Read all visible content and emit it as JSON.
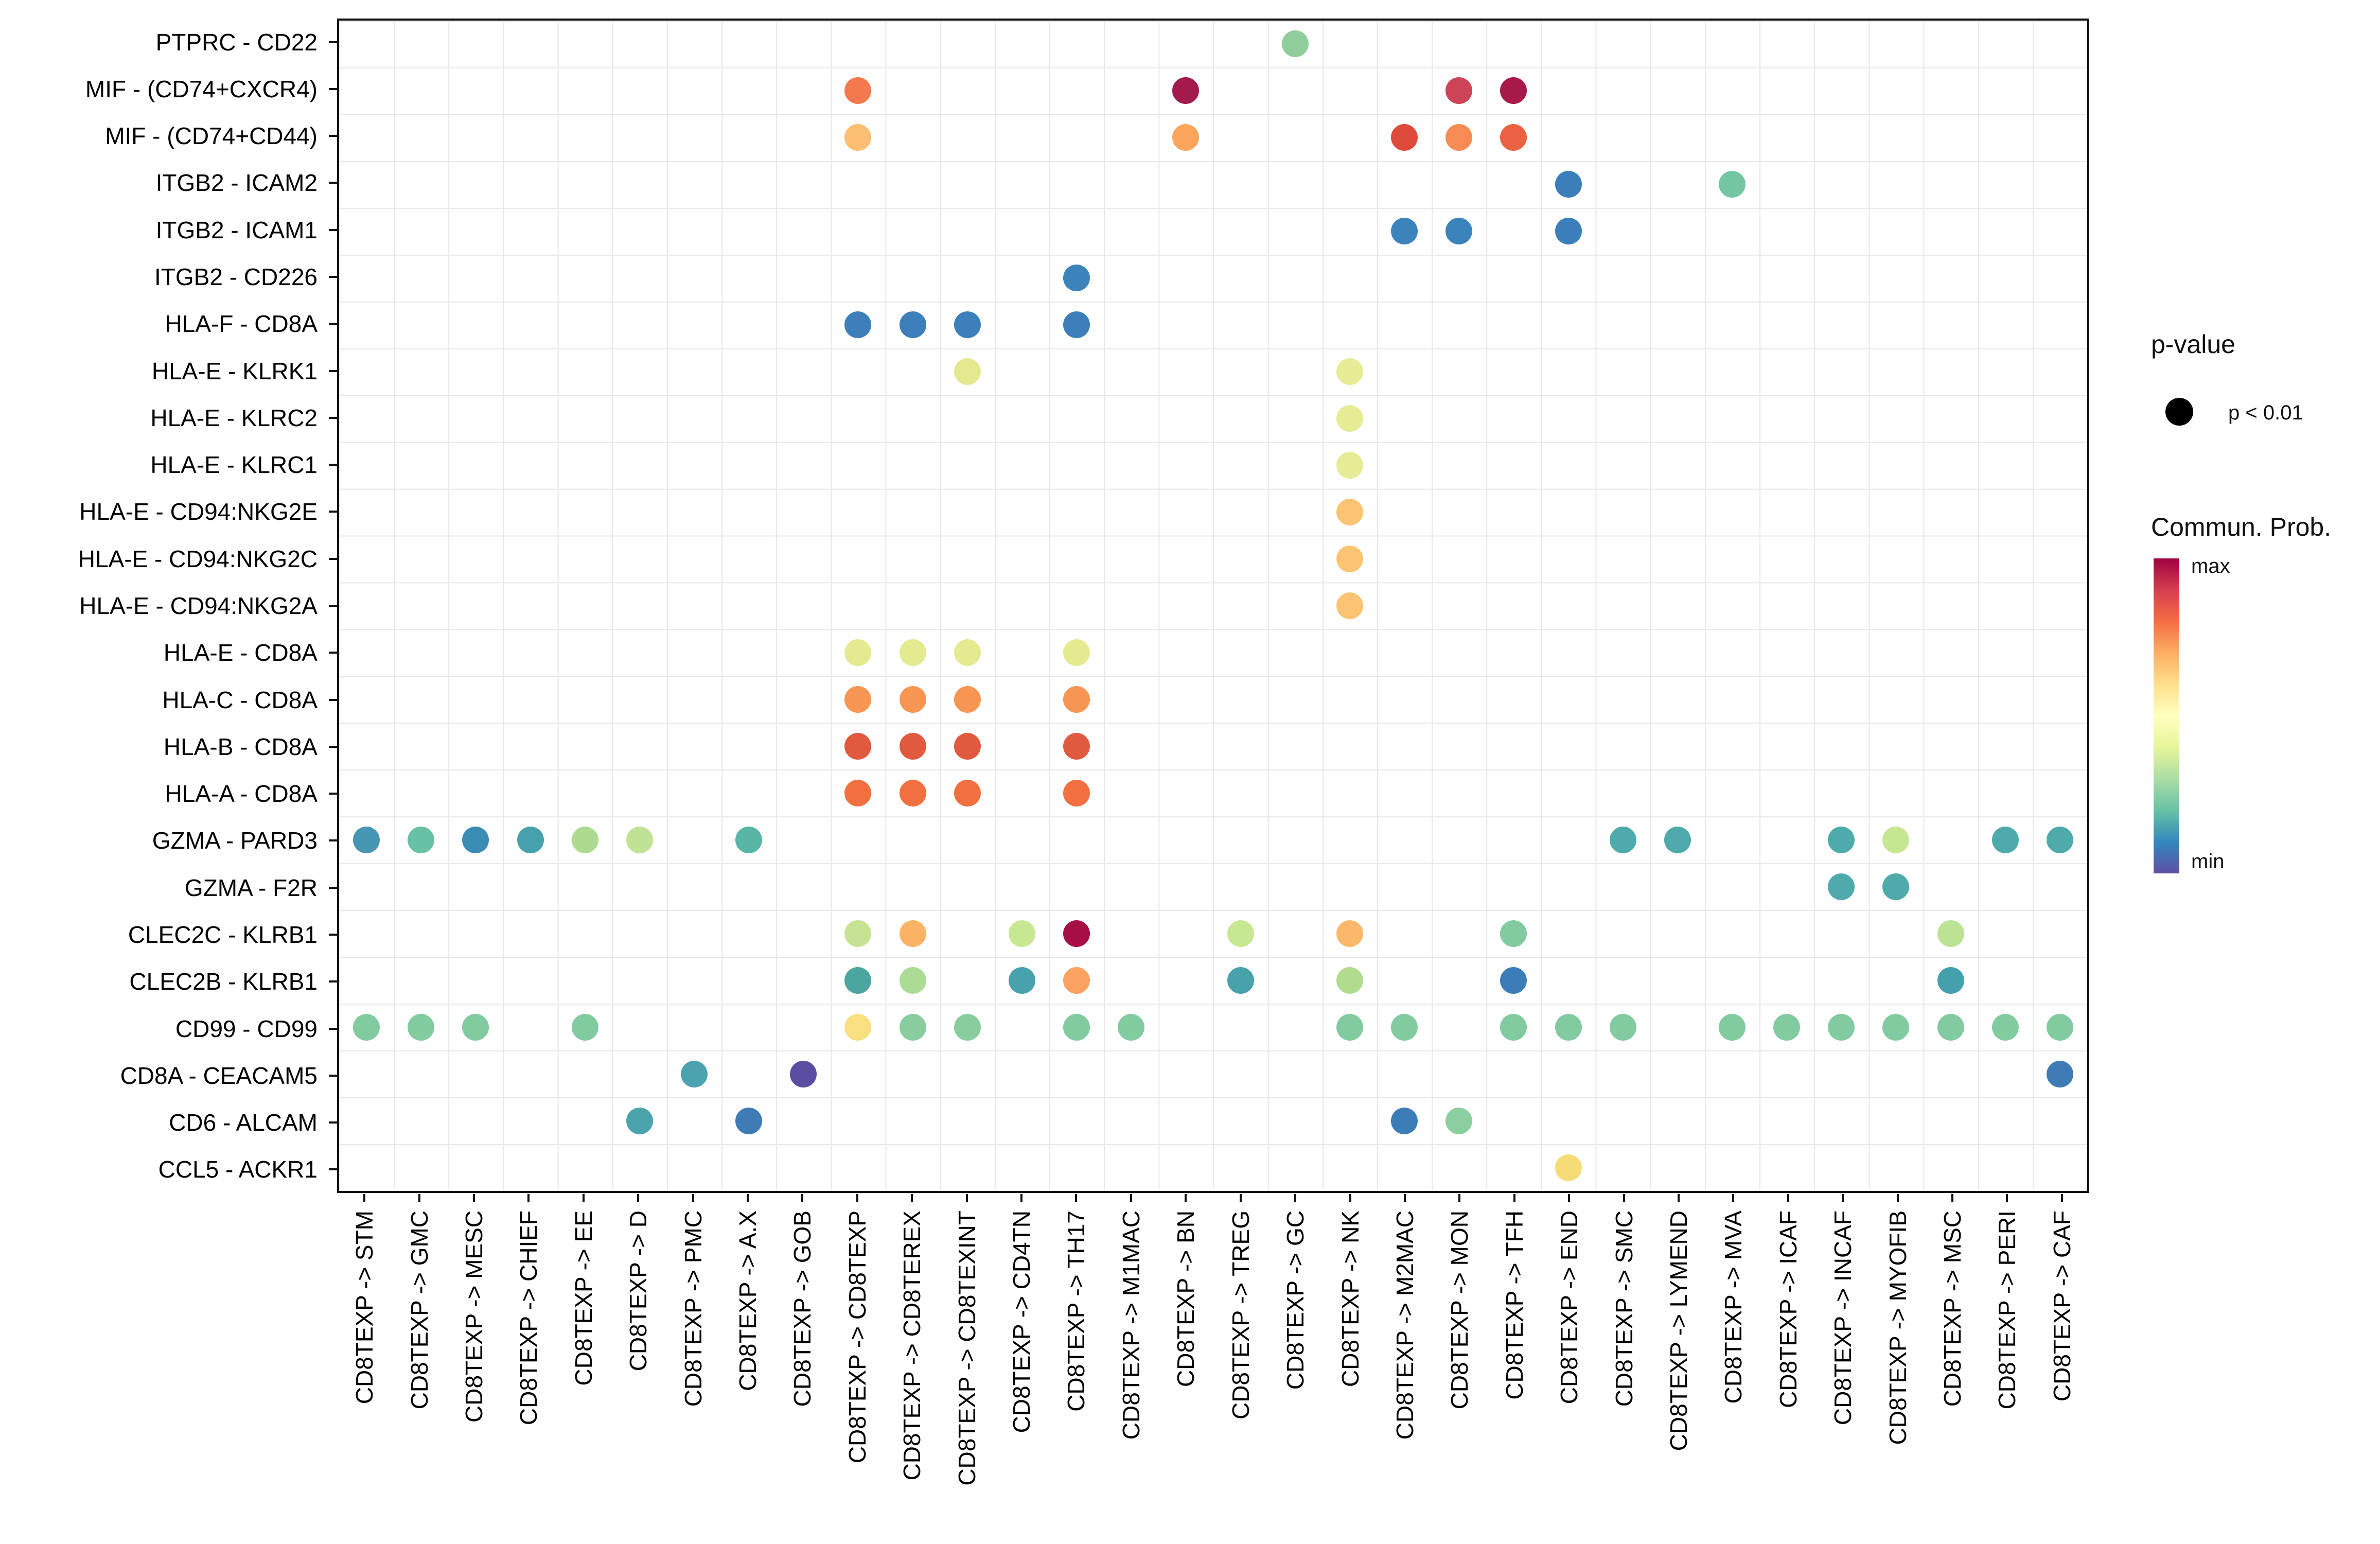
{
  "legend": {
    "pvalue": {
      "title": "p-value",
      "items": [
        {
          "label": "p < 0.01",
          "dot_color": "#000000"
        }
      ]
    },
    "colorbar": {
      "title": "Commun. Prob.",
      "max_label": "max",
      "min_label": "min",
      "gradient_stops_top_to_bottom": [
        "#9E0142",
        "#D53E4F",
        "#F46D43",
        "#FDAE61",
        "#FEE08B",
        "#FFFFBF",
        "#E6F598",
        "#ABDDA4",
        "#66C2A5",
        "#3288BD",
        "#5E4FA2"
      ]
    }
  },
  "chart_data": {
    "type": "scatter",
    "subtype": "ligand-receptor bubble dot plot (CellChat style)",
    "grid": "on",
    "dot_size_meaning": "all dots shown have p < 0.01",
    "color_meaning": "Communication probability, relative min to max on reversed Spectral scale",
    "y_categories": [
      "PTPRC - CD22",
      "MIF - (CD74+CXCR4)",
      "MIF - (CD74+CD44)",
      "ITGB2 - ICAM2",
      "ITGB2 - ICAM1",
      "ITGB2 - CD226",
      "HLA-F - CD8A",
      "HLA-E - KLRK1",
      "HLA-E - KLRC2",
      "HLA-E - KLRC1",
      "HLA-E - CD94:NKG2E",
      "HLA-E - CD94:NKG2C",
      "HLA-E - CD94:NKG2A",
      "HLA-E - CD8A",
      "HLA-C - CD8A",
      "HLA-B - CD8A",
      "HLA-A - CD8A",
      "GZMA - PARD3",
      "GZMA - F2R",
      "CLEC2C - KLRB1",
      "CLEC2B - KLRB1",
      "CD99 - CD99",
      "CD8A - CEACAM5",
      "CD6 - ALCAM",
      "CCL5 - ACKR1"
    ],
    "x_categories": [
      "CD8TEXP -> STM",
      "CD8TEXP -> GMC",
      "CD8TEXP -> MESC",
      "CD8TEXP -> CHIEF",
      "CD8TEXP -> EE",
      "CD8TEXP -> D",
      "CD8TEXP -> PMC",
      "CD8TEXP -> A.X",
      "CD8TEXP -> GOB",
      "CD8TEXP -> CD8TEXP",
      "CD8TEXP -> CD8TEREX",
      "CD8TEXP -> CD8TEXINT",
      "CD8TEXP -> CD4TN",
      "CD8TEXP -> TH17",
      "CD8TEXP -> M1MAC",
      "CD8TEXP -> BN",
      "CD8TEXP -> TREG",
      "CD8TEXP -> GC",
      "CD8TEXP -> NK",
      "CD8TEXP -> M2MAC",
      "CD8TEXP -> MON",
      "CD8TEXP -> TFH",
      "CD8TEXP -> END",
      "CD8TEXP -> SMC",
      "CD8TEXP -> LYMEND",
      "CD8TEXP -> MVA",
      "CD8TEXP -> ICAF",
      "CD8TEXP -> INCAF",
      "CD8TEXP -> MYOFIB",
      "CD8TEXP -> MSC",
      "CD8TEXP -> PERI",
      "CD8TEXP -> CAF"
    ],
    "points_format": "[y_category_index_1based, x_category_index_1based, dot_color_hex]",
    "points": [
      [
        1,
        18,
        "#8FCD9C"
      ],
      [
        2,
        10,
        "#F4794E"
      ],
      [
        2,
        16,
        "#A31A4C"
      ],
      [
        2,
        21,
        "#CC4456"
      ],
      [
        2,
        22,
        "#A81848"
      ],
      [
        3,
        10,
        "#FBBE72"
      ],
      [
        3,
        16,
        "#FBA55D"
      ],
      [
        3,
        20,
        "#DF4B3B"
      ],
      [
        3,
        21,
        "#F68C54"
      ],
      [
        3,
        22,
        "#EB6242"
      ],
      [
        4,
        23,
        "#3A7FB9"
      ],
      [
        4,
        26,
        "#74C6A0"
      ],
      [
        5,
        20,
        "#3C83BC"
      ],
      [
        5,
        21,
        "#3C83BC"
      ],
      [
        5,
        23,
        "#3A7FB9"
      ],
      [
        6,
        14,
        "#3C83BC"
      ],
      [
        7,
        10,
        "#3C7FBA"
      ],
      [
        7,
        11,
        "#3C7FBA"
      ],
      [
        7,
        12,
        "#3C7FBA"
      ],
      [
        7,
        14,
        "#3C7FBA"
      ],
      [
        8,
        12,
        "#E4E98F"
      ],
      [
        8,
        19,
        "#E6EB95"
      ],
      [
        9,
        19,
        "#E6EB95"
      ],
      [
        10,
        19,
        "#E6EB95"
      ],
      [
        11,
        19,
        "#FBC372"
      ],
      [
        12,
        19,
        "#FBC372"
      ],
      [
        13,
        19,
        "#FBC372"
      ],
      [
        14,
        10,
        "#E3EA90"
      ],
      [
        14,
        11,
        "#E3EA90"
      ],
      [
        14,
        12,
        "#E3EA90"
      ],
      [
        14,
        14,
        "#E3EA90"
      ],
      [
        15,
        10,
        "#F79552"
      ],
      [
        15,
        11,
        "#F79552"
      ],
      [
        15,
        12,
        "#F79552"
      ],
      [
        15,
        14,
        "#F79552"
      ],
      [
        16,
        10,
        "#E05A40"
      ],
      [
        16,
        11,
        "#E05A40"
      ],
      [
        16,
        12,
        "#E05A40"
      ],
      [
        16,
        14,
        "#E05A40"
      ],
      [
        17,
        10,
        "#F2703F"
      ],
      [
        17,
        11,
        "#F2703F"
      ],
      [
        17,
        12,
        "#F2703F"
      ],
      [
        17,
        14,
        "#F2703F"
      ],
      [
        18,
        1,
        "#4695B2"
      ],
      [
        18,
        2,
        "#68C1A4"
      ],
      [
        18,
        3,
        "#3A8BB5"
      ],
      [
        18,
        4,
        "#47A0AE"
      ],
      [
        18,
        5,
        "#ACDB90"
      ],
      [
        18,
        6,
        "#BFE294"
      ],
      [
        18,
        8,
        "#57B6A6"
      ],
      [
        18,
        24,
        "#4FAAAC"
      ],
      [
        18,
        25,
        "#4FAAAC"
      ],
      [
        18,
        28,
        "#4FAAAC"
      ],
      [
        18,
        29,
        "#C6E692"
      ],
      [
        18,
        31,
        "#4FAAAC"
      ],
      [
        18,
        32,
        "#4FAAAC"
      ],
      [
        19,
        28,
        "#4FAAAC"
      ],
      [
        19,
        29,
        "#4FAAAC"
      ],
      [
        20,
        10,
        "#C5E393"
      ],
      [
        20,
        11,
        "#FBB465"
      ],
      [
        20,
        13,
        "#C8E792"
      ],
      [
        20,
        14,
        "#A50F46"
      ],
      [
        20,
        17,
        "#C8E792"
      ],
      [
        20,
        19,
        "#FBB86A"
      ],
      [
        20,
        22,
        "#82CBA0"
      ],
      [
        20,
        30,
        "#BCE294"
      ],
      [
        21,
        10,
        "#4BA5A0"
      ],
      [
        21,
        11,
        "#ACDB95"
      ],
      [
        21,
        13,
        "#48A2AB"
      ],
      [
        21,
        14,
        "#FBA262"
      ],
      [
        21,
        17,
        "#48A2AB"
      ],
      [
        21,
        19,
        "#B1DC8F"
      ],
      [
        21,
        22,
        "#3C7DB8"
      ],
      [
        21,
        30,
        "#45A0AE"
      ],
      [
        22,
        1,
        "#82CBA0"
      ],
      [
        22,
        2,
        "#82CBA0"
      ],
      [
        22,
        3,
        "#82CBA0"
      ],
      [
        22,
        5,
        "#82CBA0"
      ],
      [
        22,
        10,
        "#F7DF82"
      ],
      [
        22,
        11,
        "#89CD9F"
      ],
      [
        22,
        12,
        "#89CD9F"
      ],
      [
        22,
        14,
        "#82CBA0"
      ],
      [
        22,
        15,
        "#82CBA0"
      ],
      [
        22,
        19,
        "#82CBA0"
      ],
      [
        22,
        20,
        "#82CBA0"
      ],
      [
        22,
        22,
        "#82CBA0"
      ],
      [
        22,
        23,
        "#82CBA0"
      ],
      [
        22,
        24,
        "#82CBA0"
      ],
      [
        22,
        26,
        "#82CBA0"
      ],
      [
        22,
        27,
        "#82CBA0"
      ],
      [
        22,
        28,
        "#82CBA0"
      ],
      [
        22,
        29,
        "#82CBA0"
      ],
      [
        22,
        30,
        "#82CBA0"
      ],
      [
        22,
        31,
        "#82CBA0"
      ],
      [
        22,
        32,
        "#82CBA0"
      ],
      [
        23,
        7,
        "#4BA3AF"
      ],
      [
        23,
        9,
        "#5B4DA2"
      ],
      [
        23,
        32,
        "#3F7CB5"
      ],
      [
        24,
        6,
        "#4BA4AC"
      ],
      [
        24,
        8,
        "#3F7CB5"
      ],
      [
        24,
        20,
        "#3C7DB8"
      ],
      [
        24,
        21,
        "#8CCF9E"
      ],
      [
        25,
        23,
        "#F5DC76"
      ]
    ]
  }
}
